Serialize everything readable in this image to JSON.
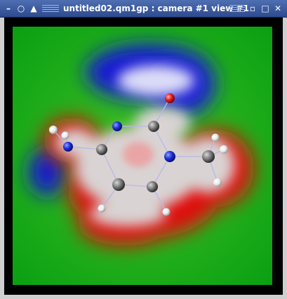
{
  "window": {
    "title": "untitled02.qm1gp : camera #1 view #1",
    "buttons": {
      "menu": "–",
      "shade": "○",
      "stick": "▲",
      "iconify": "▫",
      "maximize": "□",
      "close": "✕"
    }
  },
  "scene": {
    "atoms": [
      {
        "element": "O",
        "color": "#e31b1b"
      },
      {
        "element": "N",
        "color": "#1d2fd8"
      },
      {
        "element": "C",
        "color": "#7a7a7a"
      },
      {
        "element": "N",
        "color": "#1d2fd8"
      },
      {
        "element": "C",
        "color": "#7a7a7a"
      },
      {
        "element": "N",
        "color": "#1d2fd8"
      },
      {
        "element": "C",
        "color": "#7a7a7a"
      },
      {
        "element": "C",
        "color": "#7a7a7a"
      },
      {
        "element": "C",
        "color": "#7a7a7a"
      },
      {
        "element": "H",
        "color": "#ffffff"
      },
      {
        "element": "H",
        "color": "#ffffff"
      },
      {
        "element": "H",
        "color": "#ffffff"
      },
      {
        "element": "H",
        "color": "#ffffff"
      },
      {
        "element": "H",
        "color": "#ffffff"
      },
      {
        "element": "H",
        "color": "#ffffff"
      },
      {
        "element": "H",
        "color": "#ffffff"
      }
    ],
    "colors": {
      "background": "#06b00b",
      "negative": "#1a1ad8",
      "positive": "#e01010",
      "neutral": "#d9d3d3"
    }
  }
}
